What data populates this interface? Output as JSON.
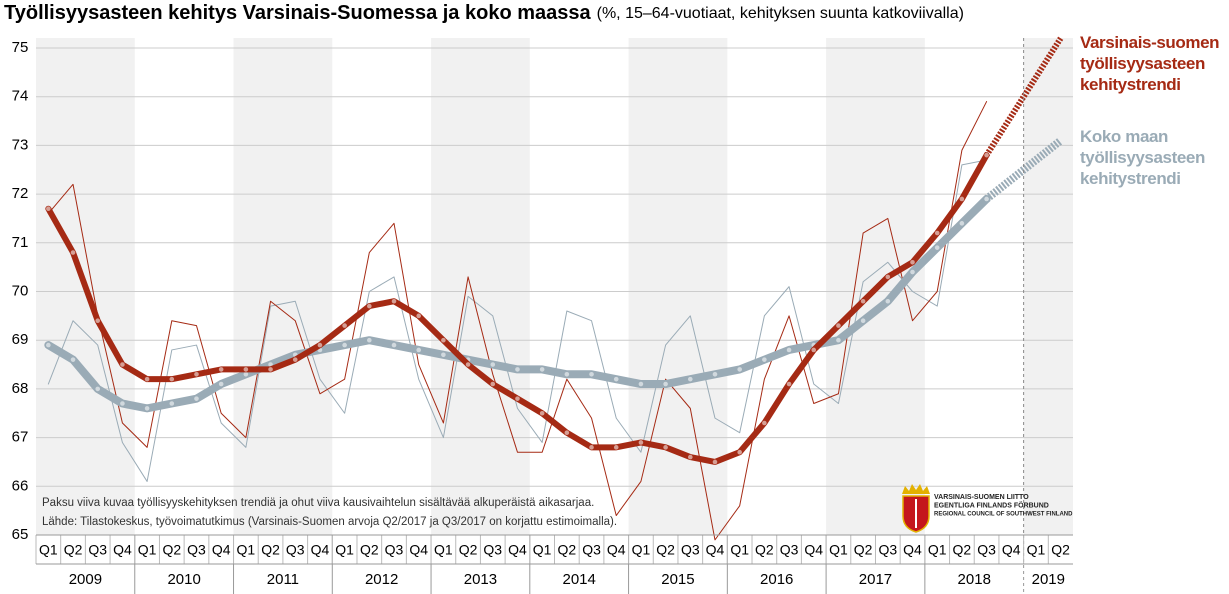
{
  "chart_data": {
    "type": "line",
    "title": "Työllisyysasteen kehitys Varsinais-Suomessa ja koko maassa",
    "subtitle": "(%, 15–64-vuotiaat, kehityksen suunta katkoviivalla)",
    "categories": [
      "Q1",
      "Q2",
      "Q3",
      "Q4",
      "Q1",
      "Q2",
      "Q3",
      "Q4",
      "Q1",
      "Q2",
      "Q3",
      "Q4",
      "Q1",
      "Q2",
      "Q3",
      "Q4",
      "Q1",
      "Q2",
      "Q3",
      "Q4",
      "Q1",
      "Q2",
      "Q3",
      "Q4",
      "Q1",
      "Q2",
      "Q3",
      "Q4",
      "Q1",
      "Q2",
      "Q3",
      "Q4",
      "Q1",
      "Q2",
      "Q3",
      "Q4",
      "Q1",
      "Q2",
      "Q3",
      "Q4",
      "Q1",
      "Q2"
    ],
    "years": [
      "2009",
      "2010",
      "2011",
      "2012",
      "2013",
      "2014",
      "2015",
      "2016",
      "2017",
      "2018",
      "2019"
    ],
    "ylim": [
      65,
      75
    ],
    "yticks": [
      65,
      66,
      67,
      68,
      69,
      70,
      71,
      72,
      73,
      74,
      75
    ],
    "grid": true,
    "series": [
      {
        "color": "#9aabb6",
        "width": 1,
        "values": [
          68.1,
          69.4,
          68.9,
          66.9,
          66.1,
          68.8,
          68.9,
          67.3,
          66.8,
          69.7,
          69.8,
          68.2,
          67.5,
          70.0,
          70.3,
          68.2,
          67.0,
          69.9,
          69.5,
          67.6,
          66.9,
          69.6,
          69.4,
          67.4,
          66.7,
          68.9,
          69.5,
          67.4,
          67.1,
          69.5,
          70.1,
          68.1,
          67.7,
          70.2,
          70.6,
          70.0,
          69.7,
          72.6,
          72.7,
          null,
          null,
          null
        ]
      },
      {
        "color": "#a52a14",
        "width": 1,
        "values": [
          71.6,
          72.2,
          69.5,
          67.3,
          66.8,
          69.4,
          69.3,
          67.5,
          67.0,
          69.8,
          69.4,
          67.9,
          68.2,
          70.8,
          71.4,
          68.5,
          67.3,
          70.3,
          68.3,
          66.7,
          66.7,
          68.2,
          67.4,
          65.4,
          66.1,
          68.2,
          67.6,
          64.9,
          65.6,
          68.2,
          69.5,
          67.7,
          67.9,
          71.2,
          71.5,
          69.4,
          70.0,
          72.9,
          73.9,
          null,
          null,
          null
        ]
      },
      {
        "name": "Koko maan työllisyysasteen kehitystrendi",
        "color": "#9aabb6",
        "width": 8,
        "values": [
          68.9,
          68.6,
          68.0,
          67.7,
          67.6,
          67.7,
          67.8,
          68.1,
          68.3,
          68.5,
          68.7,
          68.8,
          68.9,
          69.0,
          68.9,
          68.8,
          68.7,
          68.6,
          68.5,
          68.4,
          68.4,
          68.3,
          68.3,
          68.2,
          68.1,
          68.1,
          68.2,
          68.3,
          68.4,
          68.6,
          68.8,
          68.9,
          69.0,
          69.4,
          69.8,
          70.4,
          70.9,
          71.4,
          71.9,
          null,
          null,
          null
        ],
        "projection": [
          null,
          null,
          null,
          null,
          null,
          null,
          null,
          null,
          null,
          null,
          null,
          null,
          null,
          null,
          null,
          null,
          null,
          null,
          null,
          null,
          null,
          null,
          null,
          null,
          null,
          null,
          null,
          null,
          null,
          null,
          null,
          null,
          null,
          null,
          null,
          null,
          null,
          null,
          null,
          72.3,
          72.7,
          73.1
        ]
      },
      {
        "name": "Varsinais-suomen työllisyysasteen kehitystrendi",
        "color": "#a52a14",
        "width": 6,
        "values": [
          71.7,
          70.8,
          69.4,
          68.5,
          68.2,
          68.2,
          68.3,
          68.4,
          68.4,
          68.4,
          68.6,
          68.9,
          69.3,
          69.7,
          69.8,
          69.5,
          69.0,
          68.5,
          68.1,
          67.8,
          67.5,
          67.1,
          66.8,
          66.8,
          66.9,
          66.8,
          66.6,
          66.5,
          66.7,
          67.3,
          68.1,
          68.8,
          69.3,
          69.8,
          70.3,
          70.6,
          71.2,
          71.9,
          72.8,
          null,
          null,
          null
        ],
        "projection": [
          null,
          null,
          null,
          null,
          null,
          null,
          null,
          null,
          null,
          null,
          null,
          null,
          null,
          null,
          null,
          null,
          null,
          null,
          null,
          null,
          null,
          null,
          null,
          null,
          null,
          null,
          null,
          null,
          null,
          null,
          null,
          null,
          null,
          null,
          null,
          null,
          null,
          null,
          null,
          73.6,
          74.4,
          75.2
        ]
      }
    ],
    "notes": [
      "Paksu viiva kuvaa työllisyyskehityksen trendiä ja ohut viiva kausivaihtelun sisältävää alkuperäistä aikasarjaa.",
      "Lähde: Tilastokeskus, työvoimatutkimus (Varsinais-Suomen arvoja Q2/2017 ja Q3/2017 on korjattu estimoimalla)."
    ],
    "logo": [
      "VARSINAIS-SUOMEN LIITTO",
      "EGENTLIGA FINLANDS FÖRBUND",
      "REGIONAL COUNCIL OF SOUTHWEST FINLAND"
    ]
  }
}
